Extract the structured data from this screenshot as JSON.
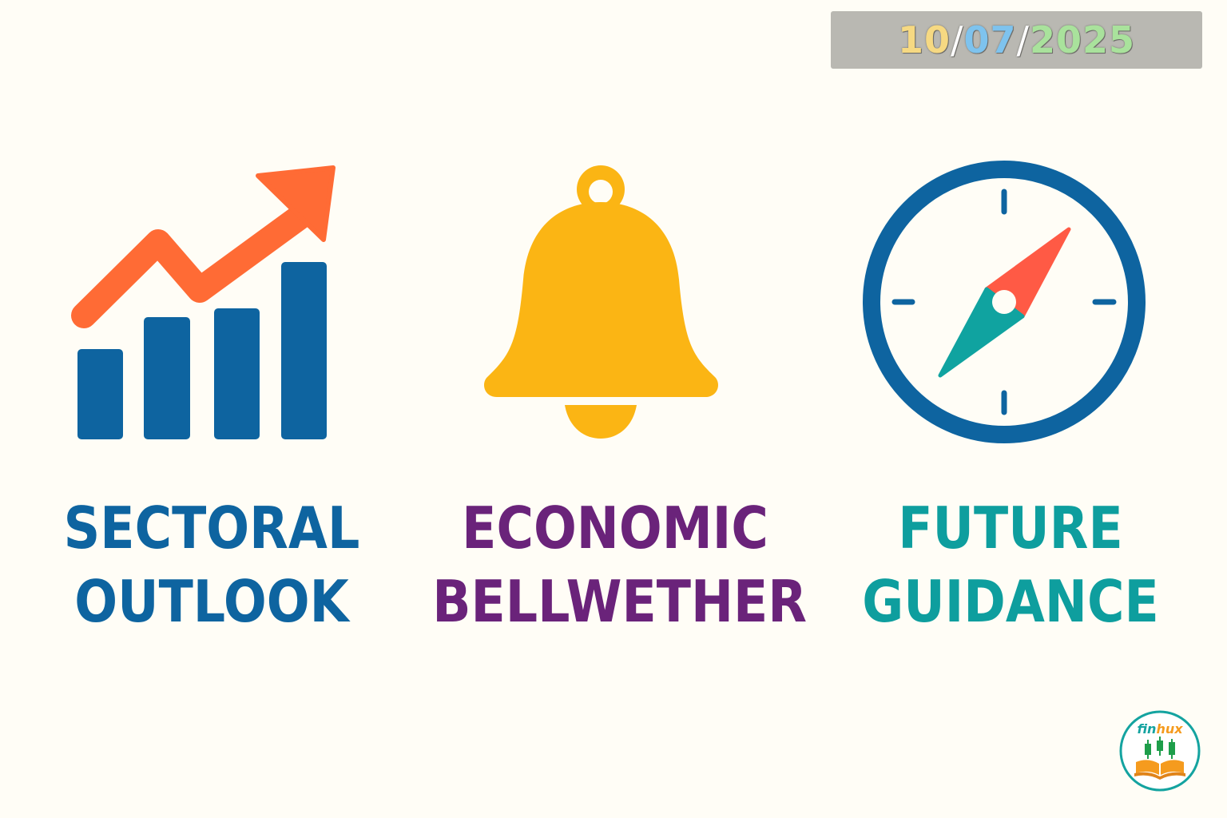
{
  "date": {
    "day": "10",
    "sep1": "/",
    "month": "07",
    "sep2": "/",
    "year": "2025",
    "colors": {
      "day": "#F6D982",
      "month": "#7EC3EE",
      "year": "#A9E29C"
    }
  },
  "cards": [
    {
      "icon": "rising-bar-chart-icon",
      "line1": "SECTORAL",
      "line2": "OUTLOOK",
      "color": "#0E64A0"
    },
    {
      "icon": "bell-icon",
      "line1": "ECONOMIC",
      "line2": "BELLWETHER",
      "color": "#6A237A"
    },
    {
      "icon": "compass-icon",
      "line1": "FUTURE",
      "line2": "GUIDANCE",
      "color": "#0E9E9E"
    }
  ],
  "logo": {
    "text": "finhux",
    "icon": "finhux-logo"
  }
}
